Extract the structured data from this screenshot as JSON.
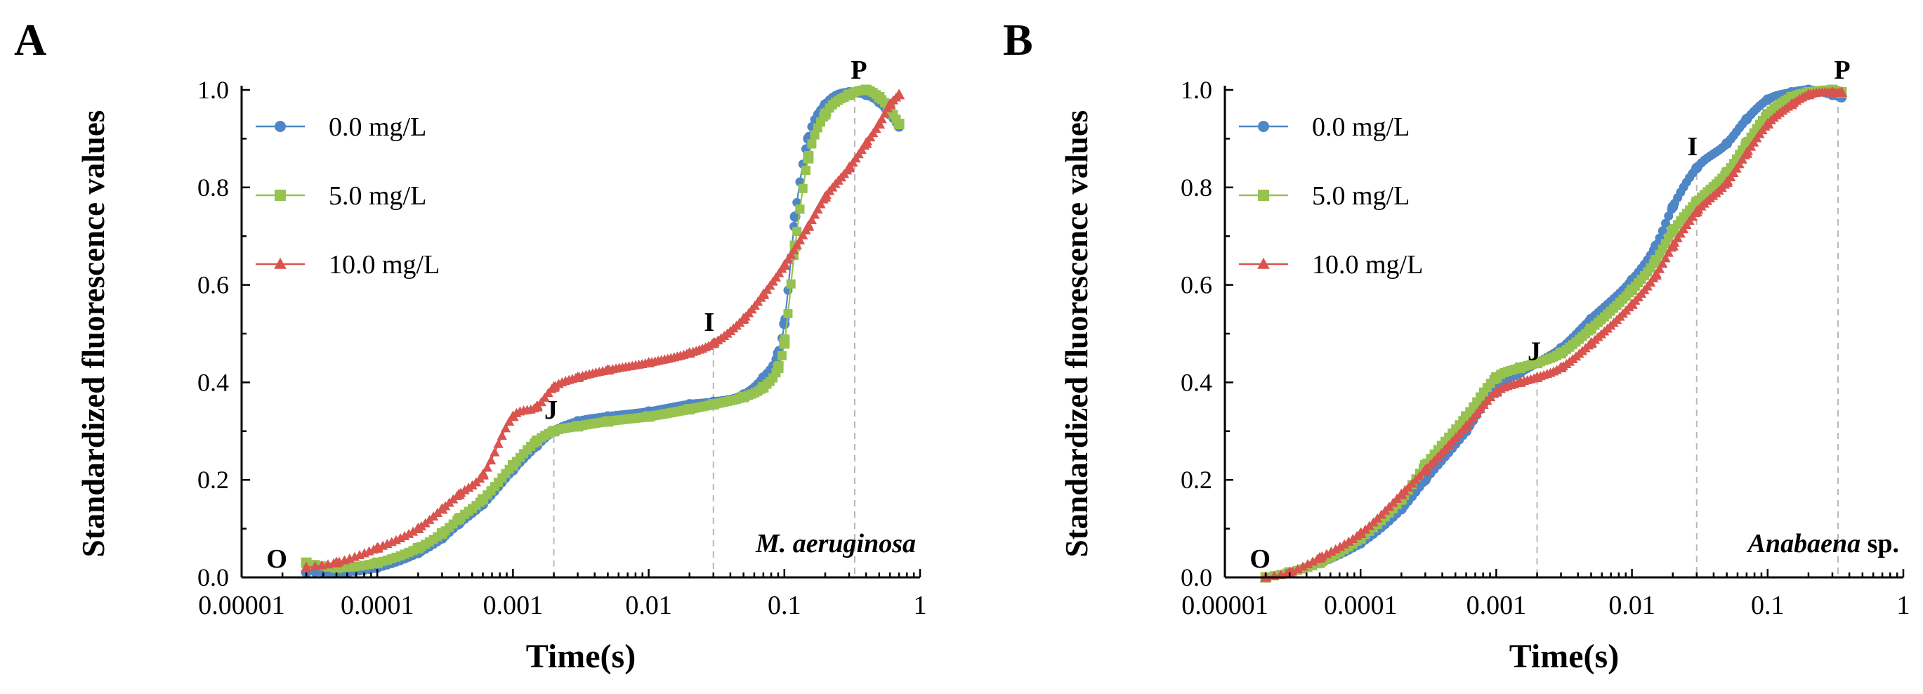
{
  "chart_data": [
    {
      "type": "line",
      "panel_label": "A",
      "xscale": "log",
      "xlim": [
        1e-05,
        1
      ],
      "ylim": [
        0,
        1.0
      ],
      "xlabel": "Time(s)",
      "ylabel": "Standardized fluorescence values",
      "x_ticks": [
        1e-05,
        0.0001,
        0.001,
        0.01,
        0.1,
        1
      ],
      "x_tick_labels": [
        "0.00001",
        "0.0001",
        "0.001",
        "0.01",
        "0.1",
        "1"
      ],
      "y_ticks": [
        0,
        0.2,
        0.4,
        0.6,
        0.8,
        1.0
      ],
      "y_tick_labels": [
        "0.0",
        "0.2",
        "0.4",
        "0.6",
        "0.8",
        "1.0"
      ],
      "legend_placement": "top-left",
      "species_label": "M. aeruginosa",
      "species_label_italic": "M. aeruginosa",
      "species_label_rest": "",
      "phase_labels": [
        {
          "label": "O",
          "x": 2e-05,
          "y": 0.0,
          "ref_line": false
        },
        {
          "label": "J",
          "x": 0.002,
          "y": 0.3,
          "ref_line": true
        },
        {
          "label": "I",
          "x": 0.03,
          "y": 0.48,
          "ref_line": true
        },
        {
          "label": "P",
          "x": 0.33,
          "y": 1.0,
          "ref_line": true
        }
      ],
      "series": [
        {
          "name": "0.0 mg/L",
          "color": "#4f86c6",
          "marker": "circle",
          "x": [
            3e-05,
            5e-05,
            0.0001,
            0.0002,
            0.0003,
            0.0004,
            0.0006,
            0.001,
            0.0015,
            0.002,
            0.003,
            0.005,
            0.01,
            0.02,
            0.03,
            0.05,
            0.07,
            0.09,
            0.1,
            0.12,
            0.15,
            0.2,
            0.3,
            0.4,
            0.5,
            0.6,
            0.7
          ],
          "y": [
            0.01,
            0.01,
            0.02,
            0.05,
            0.08,
            0.11,
            0.15,
            0.22,
            0.27,
            0.3,
            0.32,
            0.33,
            0.34,
            0.355,
            0.36,
            0.375,
            0.41,
            0.46,
            0.52,
            0.74,
            0.9,
            0.97,
            0.995,
            0.99,
            0.975,
            0.95,
            0.925
          ]
        },
        {
          "name": "5.0 mg/L",
          "color": "#96c24f",
          "marker": "square",
          "x": [
            3e-05,
            5e-05,
            0.0001,
            0.0002,
            0.0003,
            0.0004,
            0.0006,
            0.001,
            0.0015,
            0.002,
            0.003,
            0.005,
            0.01,
            0.02,
            0.03,
            0.05,
            0.07,
            0.09,
            0.1,
            0.12,
            0.15,
            0.2,
            0.3,
            0.4,
            0.5,
            0.6,
            0.7
          ],
          "y": [
            0.03,
            0.02,
            0.03,
            0.06,
            0.09,
            0.12,
            0.16,
            0.23,
            0.28,
            0.3,
            0.31,
            0.32,
            0.33,
            0.345,
            0.355,
            0.37,
            0.39,
            0.43,
            0.48,
            0.68,
            0.86,
            0.95,
            0.99,
            1.0,
            0.985,
            0.96,
            0.93
          ]
        },
        {
          "name": "10.0 mg/L",
          "color": "#d9534f",
          "marker": "triangle",
          "x": [
            3e-05,
            5e-05,
            0.0001,
            0.0002,
            0.0003,
            0.0004,
            0.0006,
            0.001,
            0.0015,
            0.002,
            0.003,
            0.005,
            0.01,
            0.02,
            0.03,
            0.05,
            0.07,
            0.1,
            0.15,
            0.2,
            0.3,
            0.4,
            0.5,
            0.6,
            0.7
          ],
          "y": [
            0.02,
            0.03,
            0.06,
            0.1,
            0.14,
            0.17,
            0.21,
            0.33,
            0.35,
            0.39,
            0.41,
            0.425,
            0.44,
            0.46,
            0.48,
            0.53,
            0.58,
            0.64,
            0.72,
            0.78,
            0.84,
            0.89,
            0.93,
            0.97,
            0.99
          ]
        }
      ]
    },
    {
      "type": "line",
      "panel_label": "B",
      "xscale": "log",
      "xlim": [
        1e-05,
        1
      ],
      "ylim": [
        0,
        1.0
      ],
      "xlabel": "Time(s)",
      "ylabel": "Standardized fluorescence values",
      "x_ticks": [
        1e-05,
        0.0001,
        0.001,
        0.01,
        0.1,
        1
      ],
      "x_tick_labels": [
        "0.00001",
        "0.0001",
        "0.001",
        "0.01",
        "0.1",
        "1"
      ],
      "y_ticks": [
        0,
        0.2,
        0.4,
        0.6,
        0.8,
        1.0
      ],
      "y_tick_labels": [
        "0.0",
        "0.2",
        "0.4",
        "0.6",
        "0.8",
        "1.0"
      ],
      "legend_placement": "top-left",
      "species_label": "Anabaena sp.",
      "species_label_italic": "Anabaena",
      "species_label_rest": " sp.",
      "phase_labels": [
        {
          "label": "O",
          "x": 2e-05,
          "y": 0.0,
          "ref_line": false
        },
        {
          "label": "J",
          "x": 0.002,
          "y": 0.42,
          "ref_line": true
        },
        {
          "label": "I",
          "x": 0.03,
          "y": 0.84,
          "ref_line": true
        },
        {
          "label": "P",
          "x": 0.33,
          "y": 1.0,
          "ref_line": true
        }
      ],
      "series": [
        {
          "name": "0.0 mg/L",
          "color": "#4f86c6",
          "marker": "circle",
          "x": [
            2e-05,
            3e-05,
            5e-05,
            0.0001,
            0.0002,
            0.0003,
            0.0006,
            0.001,
            0.0015,
            0.002,
            0.003,
            0.005,
            0.01,
            0.015,
            0.02,
            0.03,
            0.05,
            0.07,
            0.1,
            0.15,
            0.2,
            0.3,
            0.35
          ],
          "y": [
            0.0,
            0.01,
            0.03,
            0.07,
            0.14,
            0.2,
            0.3,
            0.39,
            0.42,
            0.44,
            0.47,
            0.53,
            0.61,
            0.68,
            0.76,
            0.84,
            0.89,
            0.94,
            0.98,
            0.995,
            1.0,
            0.99,
            0.985
          ]
        },
        {
          "name": "5.0 mg/L",
          "color": "#96c24f",
          "marker": "square",
          "x": [
            2e-05,
            3e-05,
            5e-05,
            0.0001,
            0.0002,
            0.0003,
            0.0006,
            0.001,
            0.0015,
            0.002,
            0.003,
            0.005,
            0.01,
            0.015,
            0.02,
            0.03,
            0.05,
            0.07,
            0.1,
            0.15,
            0.2,
            0.3,
            0.35
          ],
          "y": [
            0.0,
            0.01,
            0.03,
            0.08,
            0.16,
            0.23,
            0.33,
            0.41,
            0.43,
            0.44,
            0.46,
            0.51,
            0.59,
            0.65,
            0.71,
            0.77,
            0.83,
            0.89,
            0.95,
            0.985,
            0.995,
            1.0,
            0.995
          ]
        },
        {
          "name": "10.0 mg/L",
          "color": "#d9534f",
          "marker": "triangle",
          "x": [
            2e-05,
            3e-05,
            5e-05,
            0.0001,
            0.0002,
            0.0003,
            0.0006,
            0.001,
            0.0015,
            0.002,
            0.003,
            0.005,
            0.01,
            0.015,
            0.02,
            0.03,
            0.05,
            0.07,
            0.1,
            0.15,
            0.2,
            0.3,
            0.35
          ],
          "y": [
            0.0,
            0.01,
            0.04,
            0.09,
            0.17,
            0.22,
            0.31,
            0.38,
            0.4,
            0.41,
            0.43,
            0.48,
            0.56,
            0.62,
            0.68,
            0.75,
            0.81,
            0.87,
            0.93,
            0.97,
            0.99,
            0.995,
            0.995
          ]
        }
      ]
    }
  ]
}
